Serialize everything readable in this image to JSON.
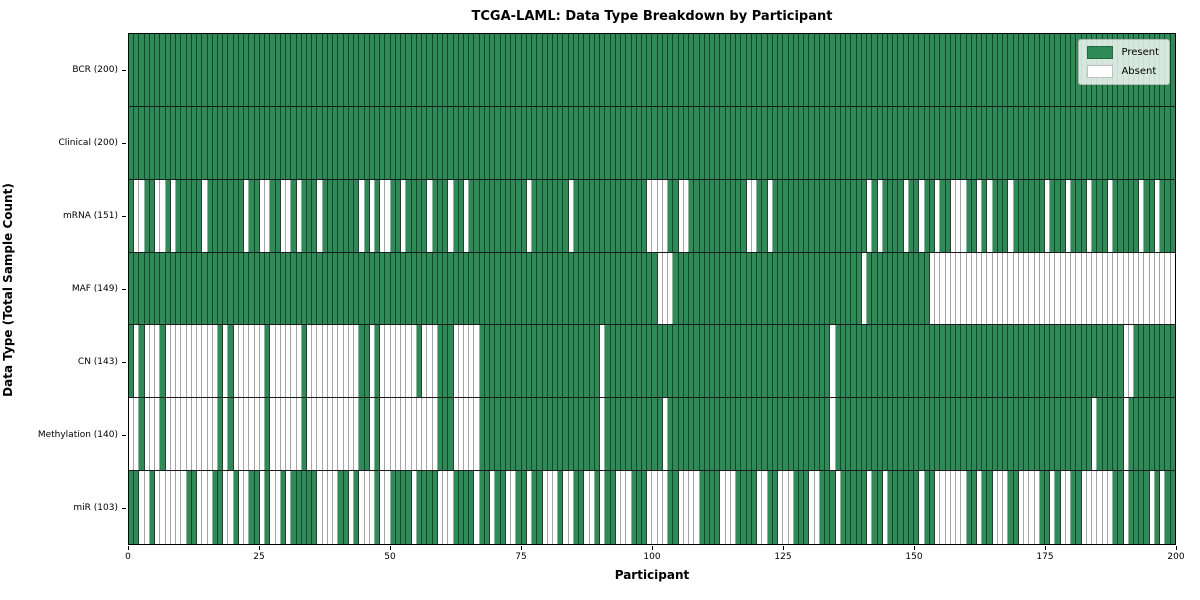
{
  "chart_data": {
    "type": "heatmap",
    "title": "TCGA-LAML: Data Type Breakdown by Participant",
    "xlabel": "Participant",
    "ylabel": "Data Type (Total Sample Count)",
    "x_ticks": [
      0,
      25,
      50,
      75,
      100,
      125,
      150,
      175,
      200
    ],
    "x_range": [
      0,
      200
    ],
    "n_participants": 200,
    "grid": false,
    "colors": {
      "present": "#2e8b57",
      "absent": "#ffffff",
      "cell_edge": "rgba(0,0,0,0.5)"
    },
    "legend": {
      "position": "upper right",
      "items": [
        {
          "label": "Present",
          "color": "#2e8b57"
        },
        {
          "label": "Absent",
          "color": "#ffffff"
        }
      ]
    },
    "rows": [
      {
        "label": "BCR (200)",
        "data_type": "BCR",
        "present_count": 200,
        "absent": []
      },
      {
        "label": "Clinical (200)",
        "data_type": "Clinical",
        "present_count": 200,
        "absent": []
      },
      {
        "label": "mRNA (151)",
        "data_type": "mRNA",
        "present_count": 151,
        "absent": [
          1,
          2,
          5,
          6,
          8,
          14,
          22,
          [
            25,
            26
          ],
          [
            29,
            30
          ],
          32,
          36,
          44,
          46,
          [
            48,
            49
          ],
          52,
          57,
          61,
          64,
          76,
          84,
          [
            99,
            102
          ],
          [
            105,
            106
          ],
          [
            118,
            119
          ],
          122,
          141,
          143,
          148,
          151,
          154,
          [
            157,
            159
          ],
          162,
          164,
          168,
          175,
          179,
          183,
          187,
          193,
          196
        ]
      },
      {
        "label": "MAF (149)",
        "data_type": "MAF",
        "present_count": 149,
        "absent": [
          [
            101,
            103
          ],
          140,
          [
            153,
            199
          ]
        ]
      },
      {
        "label": "CN (143)",
        "data_type": "CN",
        "present_count": 143,
        "absent": [
          1,
          [
            3,
            5
          ],
          [
            7,
            16
          ],
          18,
          [
            20,
            25
          ],
          [
            27,
            32
          ],
          [
            34,
            43
          ],
          46,
          [
            48,
            54
          ],
          [
            56,
            58
          ],
          [
            62,
            66
          ],
          90,
          134,
          [
            190,
            191
          ]
        ]
      },
      {
        "label": "Methylation (140)",
        "data_type": "Methylation",
        "present_count": 140,
        "absent": [
          [
            0,
            1
          ],
          [
            3,
            5
          ],
          [
            7,
            16
          ],
          18,
          [
            20,
            25
          ],
          [
            27,
            32
          ],
          [
            34,
            43
          ],
          46,
          [
            48,
            58
          ],
          [
            62,
            66
          ],
          90,
          102,
          134,
          184,
          190
        ]
      },
      {
        "label": "miR (103)",
        "data_type": "miR",
        "present_count": 103,
        "absent": [
          [
            2,
            3
          ],
          [
            5,
            10
          ],
          [
            13,
            15
          ],
          [
            18,
            19
          ],
          [
            21,
            22
          ],
          25,
          [
            27,
            28
          ],
          30,
          [
            36,
            39
          ],
          42,
          [
            44,
            46
          ],
          [
            48,
            49
          ],
          54,
          [
            59,
            61
          ],
          66,
          69,
          [
            72,
            73
          ],
          76,
          [
            79,
            81
          ],
          [
            83,
            84
          ],
          [
            87,
            88
          ],
          90,
          [
            93,
            95
          ],
          [
            99,
            102
          ],
          [
            105,
            108
          ],
          [
            113,
            115
          ],
          [
            120,
            121
          ],
          [
            124,
            126
          ],
          [
            130,
            131
          ],
          135,
          141,
          144,
          151,
          [
            154,
            159
          ],
          162,
          [
            165,
            167
          ],
          [
            170,
            173
          ],
          176,
          [
            178,
            179
          ],
          [
            182,
            187
          ],
          190,
          195,
          197
        ]
      }
    ]
  }
}
